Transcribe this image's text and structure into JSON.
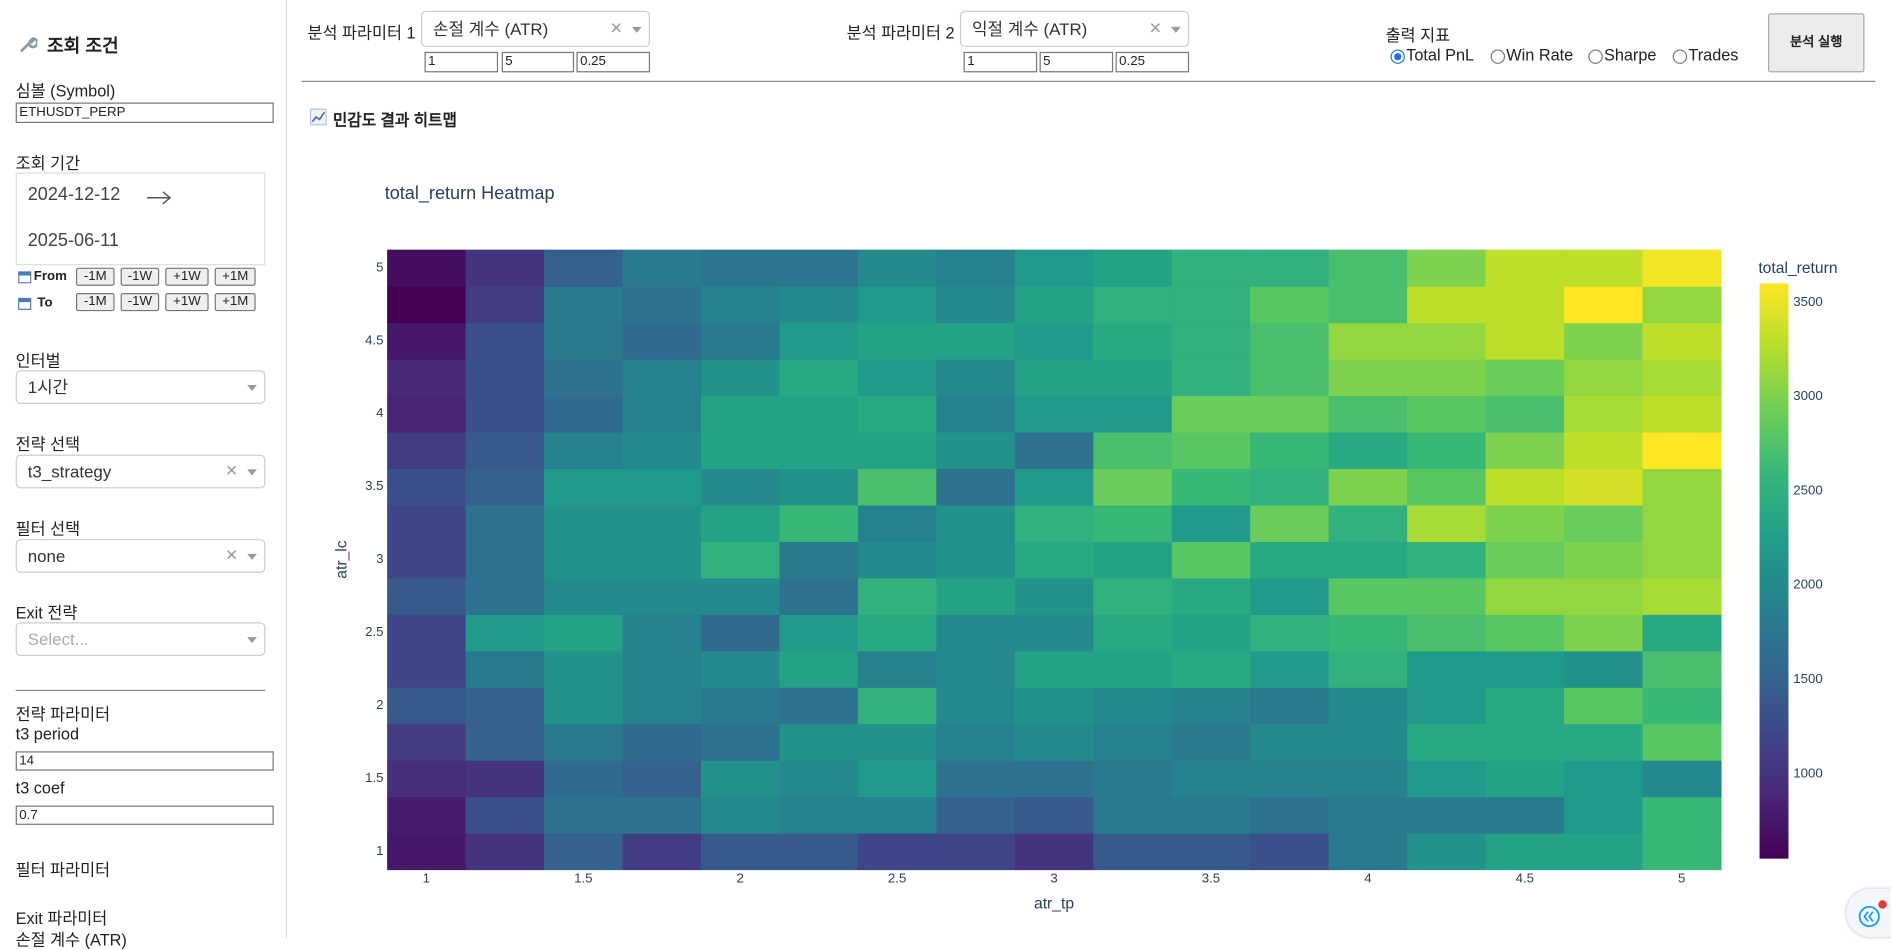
{
  "sidebar": {
    "title": "조회 조건",
    "symbol_label": "심볼 (Symbol)",
    "symbol_value": "ETHUSDT_PERP",
    "period_label": "조회 기간",
    "start_date": "2024-12-12",
    "end_date": "2025-06-11",
    "from_label": "From",
    "to_label": "To",
    "shift_buttons": [
      "-1M",
      "-1W",
      "+1W",
      "+1M"
    ],
    "interval_label": "인터벌",
    "interval_value": "1시간",
    "strategy_label": "전략 선택",
    "strategy_value": "t3_strategy",
    "filter_label": "필터 선택",
    "filter_value": "none",
    "exit_label": "Exit 전략",
    "exit_placeholder": "Select...",
    "strategy_params_label": "전략 파라미터",
    "t3_period_label": "t3 period",
    "t3_period_value": "14",
    "t3_coef_label": "t3 coef",
    "t3_coef_value": "0.7",
    "filter_params_label": "필터 파라미터",
    "exit_params_label": "Exit 파라미터",
    "exit_param_first": "손절 계수 (ATR)"
  },
  "toolbar": {
    "param1_label": "분석 파라미터 1",
    "param1_value": "손절 계수 (ATR)",
    "param1_range": [
      "1",
      "5",
      "0.25"
    ],
    "param2_label": "분석 파라미터 2",
    "param2_value": "익절 계수 (ATR)",
    "param2_range": [
      "1",
      "5",
      "0.25"
    ],
    "metric_label": "출력 지표",
    "metrics": [
      "Total PnL",
      "Win Rate",
      "Sharpe",
      "Trades"
    ],
    "selected_metric": "Total PnL",
    "run_button": "분석 실행",
    "section_title": "민감도 결과 히트맵"
  },
  "chart_data": {
    "type": "heatmap",
    "title": "total_return Heatmap",
    "x_label": "atr_tp",
    "y_label": "atr_lc",
    "colorbar_title": "total_return",
    "colorscale": "Viridis",
    "x": [
      1,
      1.25,
      1.5,
      1.75,
      2,
      2.25,
      2.5,
      2.75,
      3,
      3.25,
      3.5,
      3.75,
      4,
      4.25,
      4.5,
      4.75,
      5
    ],
    "y": [
      1,
      1.25,
      1.5,
      1.75,
      2,
      2.25,
      2.5,
      2.75,
      3,
      3.25,
      3.5,
      3.75,
      4,
      4.25,
      4.5,
      4.75,
      5
    ],
    "z": [
      [
        750,
        1000,
        1500,
        1100,
        1400,
        1400,
        1200,
        1200,
        1000,
        1400,
        1400,
        1300,
        1800,
        2100,
        2300,
        2300,
        2600
      ],
      [
        800,
        1300,
        1700,
        1700,
        2000,
        1900,
        1900,
        1500,
        1400,
        1800,
        1800,
        1700,
        1800,
        1800,
        1800,
        2200,
        2600
      ],
      [
        950,
        1000,
        1600,
        1500,
        2100,
        2000,
        2200,
        1700,
        1700,
        1800,
        1900,
        1900,
        1900,
        2200,
        2300,
        2200,
        2000
      ],
      [
        1100,
        1500,
        1800,
        1600,
        1700,
        2100,
        2100,
        1900,
        2000,
        1900,
        1800,
        2000,
        2000,
        2400,
        2400,
        2400,
        2800
      ],
      [
        1400,
        1500,
        2100,
        1900,
        1800,
        1700,
        2500,
        2000,
        2100,
        2000,
        1900,
        1800,
        2000,
        2200,
        2400,
        2800,
        2600
      ],
      [
        1200,
        1800,
        2100,
        1900,
        2000,
        2300,
        1900,
        2000,
        2300,
        2300,
        2400,
        2200,
        2500,
        2200,
        2200,
        2100,
        2700
      ],
      [
        1200,
        2200,
        2300,
        1900,
        1600,
        2200,
        2400,
        2000,
        2000,
        2400,
        2300,
        2500,
        2600,
        2700,
        2800,
        3000,
        2400
      ],
      [
        1400,
        1700,
        2000,
        2000,
        2000,
        1700,
        2500,
        2300,
        2100,
        2500,
        2400,
        2200,
        2800,
        2800,
        3100,
        3100,
        3200
      ],
      [
        1200,
        1700,
        2100,
        2100,
        2500,
        1800,
        2000,
        2100,
        2400,
        2300,
        2800,
        2400,
        2400,
        2500,
        2900,
        3000,
        3100
      ],
      [
        1200,
        1700,
        2100,
        2100,
        2300,
        2600,
        1900,
        2100,
        2500,
        2600,
        2200,
        2900,
        2500,
        3200,
        3000,
        2900,
        3100
      ],
      [
        1300,
        1500,
        2200,
        2200,
        2000,
        2100,
        2700,
        1700,
        2200,
        2900,
        2600,
        2500,
        3000,
        2800,
        3300,
        3400,
        3100
      ],
      [
        1100,
        1400,
        1900,
        2000,
        2300,
        2300,
        2300,
        2100,
        1700,
        2700,
        2800,
        2600,
        2400,
        2600,
        3000,
        3300,
        3600
      ],
      [
        850,
        1300,
        1600,
        1900,
        2300,
        2300,
        2400,
        1900,
        2200,
        2200,
        2900,
        2900,
        2700,
        2800,
        2700,
        3200,
        3300
      ],
      [
        900,
        1300,
        1700,
        1900,
        2100,
        2400,
        2200,
        2000,
        2300,
        2300,
        2500,
        2700,
        3000,
        3000,
        2900,
        3100,
        3200
      ],
      [
        750,
        1300,
        1800,
        1600,
        1800,
        2200,
        2300,
        2300,
        2200,
        2400,
        2500,
        2700,
        3100,
        3100,
        3300,
        3000,
        3300
      ],
      [
        550,
        1100,
        1800,
        1700,
        1900,
        2000,
        2200,
        2000,
        2300,
        2500,
        2500,
        2800,
        2700,
        3300,
        3300,
        3600,
        3100
      ],
      [
        650,
        1000,
        1500,
        1800,
        1750,
        1750,
        2000,
        1900,
        2200,
        2300,
        2500,
        2500,
        2700,
        3000,
        3300,
        3300,
        3550
      ]
    ],
    "xlim": [
      0.875,
      5.125
    ],
    "ylim": [
      0.875,
      5.125
    ],
    "xticks": [
      1,
      1.5,
      2,
      2.5,
      3,
      3.5,
      4,
      4.5,
      5
    ],
    "yticks": [
      1,
      1.5,
      2,
      2.5,
      3,
      3.5,
      4,
      4.5,
      5
    ],
    "zlim": [
      550,
      3600
    ],
    "colorbar_ticks": [
      1000,
      1500,
      2000,
      2500,
      3000,
      3500
    ]
  }
}
